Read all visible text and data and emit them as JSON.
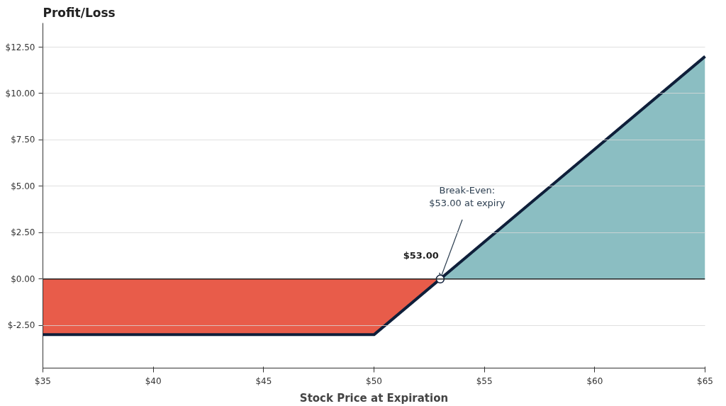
{
  "chart_data": {
    "type": "area",
    "title": "Profit/Loss",
    "xlabel": "Stock Price at Expiration",
    "xlim": [
      35,
      65
    ],
    "xticks": [
      {
        "value": 35,
        "label": "$35"
      },
      {
        "value": 40,
        "label": "$40"
      },
      {
        "value": 45,
        "label": "$45"
      },
      {
        "value": 50,
        "label": "$50"
      },
      {
        "value": 55,
        "label": "$55"
      },
      {
        "value": 60,
        "label": "$60"
      },
      {
        "value": 65,
        "label": "$65"
      }
    ],
    "ylim": [
      -4.8,
      13.8
    ],
    "yticks": [
      {
        "value": -2.5,
        "label": "$-2.50"
      },
      {
        "value": 0,
        "label": "$0.00"
      },
      {
        "value": 2.5,
        "label": "$2.50"
      },
      {
        "value": 5,
        "label": "$5.00"
      },
      {
        "value": 7.5,
        "label": "$7.50"
      },
      {
        "value": 10,
        "label": "$10.00"
      },
      {
        "value": 12.5,
        "label": "$12.50"
      }
    ],
    "grid": "y",
    "series": [
      {
        "color": "#e85c4a",
        "x": [
          35,
          50,
          53
        ],
        "values": [
          -3,
          -3,
          0
        ]
      },
      {
        "color": "#8bbec2",
        "x": [
          53,
          65
        ],
        "values": [
          0,
          12
        ]
      },
      {
        "type": "line",
        "color": "#0f1f3a",
        "x": [
          35,
          50,
          65
        ],
        "values": [
          -3,
          -3,
          12
        ],
        "line_style": "solid"
      },
      {
        "type": "scatter",
        "color": "#ffffff",
        "x": [
          53
        ],
        "values": [
          0
        ],
        "marker": "circle"
      }
    ],
    "ref_lines": [
      {
        "axis": "y",
        "value": 0,
        "color": "#222222"
      }
    ],
    "annotations": [
      {
        "text": "$53.00",
        "x": 53,
        "y": 0
      },
      {
        "text": "Break-Even:\n$53.00 at expiry",
        "x": 53,
        "y": 0
      }
    ]
  }
}
